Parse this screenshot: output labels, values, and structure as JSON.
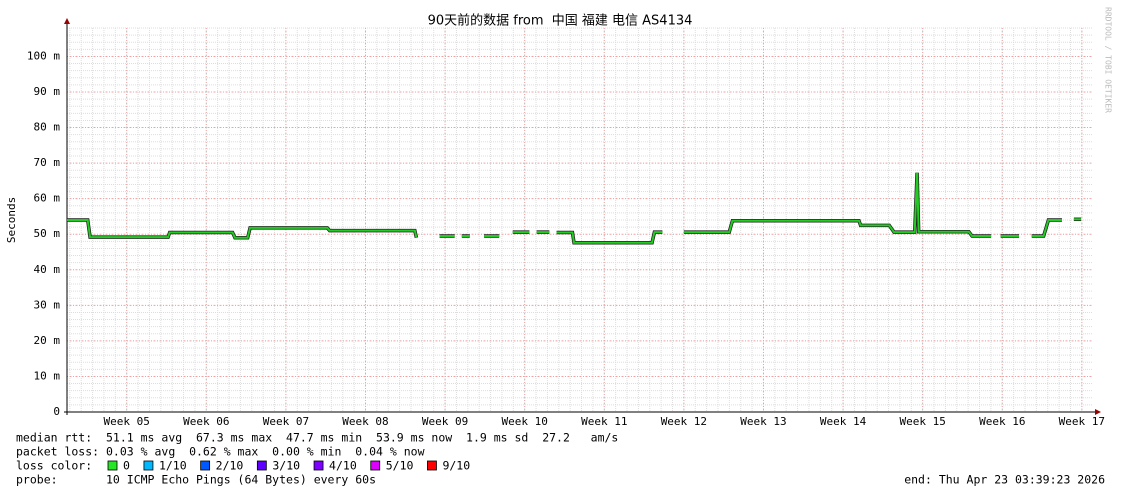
{
  "chart_data": {
    "type": "line",
    "title": "90天前的数据 from  中国 福建 电信 AS4134",
    "y_label": "Seconds",
    "xlim": [
      4.25,
      17.14
    ],
    "xticks": [
      {
        "value": 5,
        "label": "Week 05"
      },
      {
        "value": 6,
        "label": "Week 06"
      },
      {
        "value": 7,
        "label": "Week 07"
      },
      {
        "value": 8,
        "label": "Week 08"
      },
      {
        "value": 9,
        "label": "Week 09"
      },
      {
        "value": 10,
        "label": "Week 10"
      },
      {
        "value": 11,
        "label": "Week 11"
      },
      {
        "value": 12,
        "label": "Week 12"
      },
      {
        "value": 13,
        "label": "Week 13"
      },
      {
        "value": 14,
        "label": "Week 14"
      },
      {
        "value": 15,
        "label": "Week 15"
      },
      {
        "value": 16,
        "label": "Week 16"
      },
      {
        "value": 17,
        "label": "Week 17"
      }
    ],
    "ylim": [
      0,
      108
    ],
    "yticks": [
      0,
      {
        "value": 10,
        "label": "10 m"
      },
      {
        "value": 20,
        "label": "20 m"
      },
      {
        "value": 30,
        "label": "30 m"
      },
      {
        "value": 40,
        "label": "40 m"
      },
      {
        "value": 50,
        "label": "50 m"
      },
      {
        "value": 60,
        "label": "60 m"
      },
      {
        "value": 70,
        "label": "70 m"
      },
      {
        "value": 80,
        "label": "80 m"
      },
      {
        "value": 90,
        "label": "90 m"
      },
      {
        "value": 100,
        "label": "100 m"
      }
    ],
    "grid": true,
    "series": [
      {
        "color": "#22cc22",
        "x": [
          4.25,
          4.51,
          4.54,
          5.52,
          5.54,
          6.33,
          6.36,
          6.52,
          6.55,
          7.52,
          7.55,
          8.62,
          8.64,
          8.8,
          8.93,
          9.12,
          9.16,
          9.21,
          9.31,
          9.4,
          9.49,
          9.68,
          9.76,
          9.85,
          10.06,
          10.1,
          10.15,
          10.31,
          10.35,
          10.4,
          10.6,
          10.62,
          11.6,
          11.63,
          11.73,
          11.86,
          12.0,
          12.57,
          12.61,
          14.2,
          14.22,
          14.58,
          14.64,
          14.9,
          14.93,
          14.95,
          15.58,
          15.62,
          15.86,
          15.92,
          15.98,
          16.21,
          16.29,
          16.37,
          16.52,
          16.58,
          16.75,
          16.82,
          16.9,
          16.99
        ],
        "values": [
          54,
          54,
          49.2,
          49.2,
          50.5,
          50.5,
          49,
          49,
          51.8,
          51.8,
          51,
          51,
          49,
          null,
          49.5,
          49.5,
          null,
          49.5,
          49.5,
          null,
          49.5,
          49.5,
          null,
          50.6,
          50.6,
          null,
          50.6,
          50.6,
          null,
          50.5,
          50.5,
          47.6,
          47.6,
          50.6,
          50.6,
          null,
          50.6,
          50.6,
          53.8,
          53.8,
          52.5,
          52.5,
          50.6,
          50.6,
          67.3,
          50.7,
          50.7,
          49.5,
          49.5,
          null,
          49.5,
          49.5,
          null,
          49.5,
          49.5,
          54,
          54,
          null,
          54.2,
          54.2
        ]
      }
    ]
  },
  "watermark": "RRDTOOL / TOBI OETIKER",
  "footer": {
    "median": "median rtt:  51.1 ms avg  67.3 ms max  47.7 ms min  53.9 ms now  1.9 ms sd  27.2   am/s",
    "loss": "packet loss: 0.03 % avg  0.62 % max  0.00 % min  0.04 % now",
    "loss_label": "loss color:",
    "loss_colors": [
      {
        "label": "0",
        "color": "#26e626"
      },
      {
        "label": "1/10",
        "color": "#00b8ff"
      },
      {
        "label": "2/10",
        "color": "#0059ff"
      },
      {
        "label": "3/10",
        "color": "#5e00ff"
      },
      {
        "label": "4/10",
        "color": "#7e00ff"
      },
      {
        "label": "5/10",
        "color": "#dd00ff"
      },
      {
        "label": "9/10",
        "color": "#ff0000"
      }
    ],
    "probe": "probe:       10 ICMP Echo Pings (64 Bytes) every 60s",
    "end": "end: Thu Apr 23 03:39:23 2026"
  }
}
